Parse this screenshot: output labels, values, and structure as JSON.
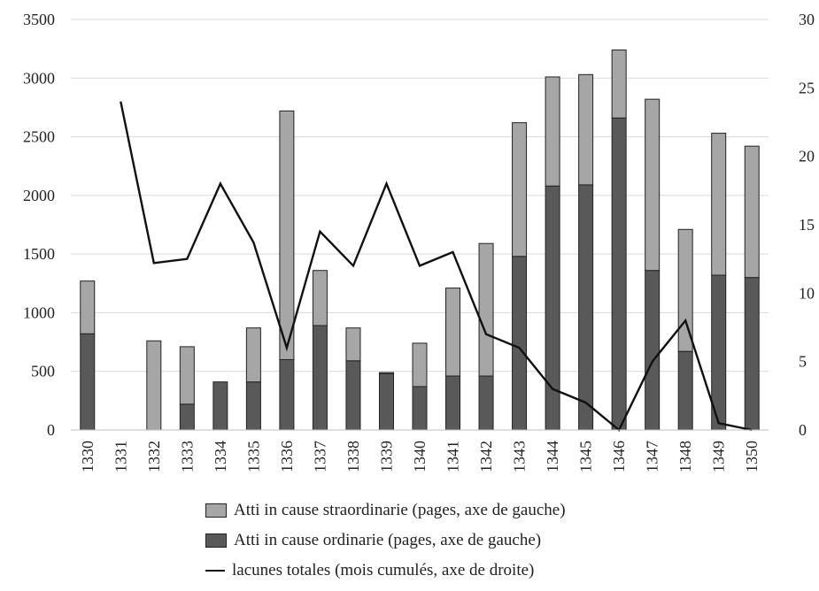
{
  "chart_data": {
    "type": "bar",
    "categories": [
      "1330",
      "1331",
      "1332",
      "1333",
      "1334",
      "1335",
      "1336",
      "1337",
      "1338",
      "1339",
      "1340",
      "1341",
      "1342",
      "1343",
      "1344",
      "1345",
      "1346",
      "1347",
      "1348",
      "1349",
      "1350"
    ],
    "series": [
      {
        "name": "Atti in cause ordinarie (pages, axe de gauche)",
        "kind": "bar",
        "axis": "left",
        "color": "#595959",
        "values": [
          820,
          0,
          0,
          220,
          410,
          410,
          600,
          890,
          590,
          480,
          370,
          460,
          460,
          1480,
          2080,
          2090,
          2660,
          1360,
          670,
          1320,
          1300
        ]
      },
      {
        "name": "Atti in cause straordinarie (pages, axe de gauche)",
        "kind": "bar",
        "axis": "left",
        "stacked_on": "Atti in cause ordinarie (pages, axe de gauche)",
        "color": "#a6a6a6",
        "values": [
          450,
          0,
          760,
          490,
          0,
          460,
          2120,
          470,
          280,
          10,
          370,
          750,
          1130,
          1140,
          930,
          940,
          580,
          1460,
          1040,
          1210,
          1120
        ]
      },
      {
        "name": "lacunes totales (mois cumulés, axe de droite)",
        "kind": "line",
        "axis": "right",
        "color": "#111111",
        "values": [
          null,
          24,
          12.2,
          12.5,
          18,
          13.7,
          6,
          14.5,
          12,
          18,
          12,
          13,
          7,
          6,
          3,
          2,
          0,
          5,
          8,
          0.5,
          0
        ]
      }
    ],
    "ylim_left": [
      0,
      3500
    ],
    "yticks_left": [
      "0",
      "500",
      "1000",
      "1500",
      "2000",
      "2500",
      "3000",
      "3500"
    ],
    "ylim_right": [
      0,
      30
    ],
    "yticks_right": [
      "0",
      "5",
      "10",
      "15",
      "20",
      "25",
      "30"
    ],
    "grid": true,
    "legend_position": "bottom",
    "legend": [
      {
        "label": "Atti in cause straordinarie (pages, axe de gauche)",
        "color": "#a6a6a6",
        "kind": "bar"
      },
      {
        "label": "Atti in cause ordinarie (pages, axe de gauche)",
        "color": "#595959",
        "kind": "bar"
      },
      {
        "label": "lacunes totales (mois cumulés, axe de droite)",
        "color": "#111111",
        "kind": "line"
      }
    ]
  }
}
